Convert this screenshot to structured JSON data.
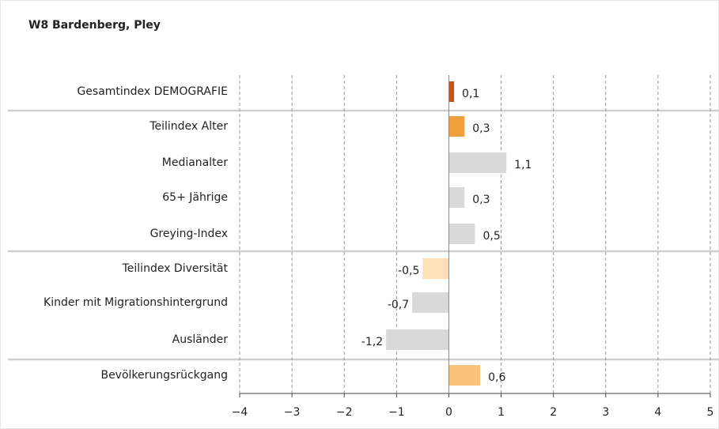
{
  "chart_data": {
    "type": "hbar",
    "title": "W8 Bardenberg, Pley",
    "categories": [
      "Gesamtindex DEMOGRAFIE",
      "Teilindex Alter",
      "Medianalter",
      "65+ Jährige",
      "Greying-Index",
      "Teilindex Diversität",
      "Kinder mit Migrationshintergrund",
      "Ausländer",
      "Bevölkerungsrückgang"
    ],
    "values": [
      0.1,
      0.3,
      1.1,
      0.3,
      0.5,
      -0.5,
      -0.7,
      -1.2,
      0.6
    ],
    "value_labels": [
      "0,1",
      "0,3",
      "1,1",
      "0,3",
      "0,5",
      "-0,5",
      "-0,7",
      "-1,2",
      "0,6"
    ],
    "colors": [
      "#c0561e",
      "#f0a03c",
      "#d9d9d9",
      "#d9d9d9",
      "#d9d9d9",
      "#fde0ba",
      "#d9d9d9",
      "#d9d9d9",
      "#f9c47a"
    ],
    "xlim": [
      -4,
      5
    ],
    "xticks": [
      {
        "value": -4,
        "label": "−4"
      },
      {
        "value": -3,
        "label": "−3"
      },
      {
        "value": -2,
        "label": "−2"
      },
      {
        "value": -1,
        "label": "−1"
      },
      0,
      1,
      2,
      3,
      4,
      5
    ],
    "grid": true
  }
}
